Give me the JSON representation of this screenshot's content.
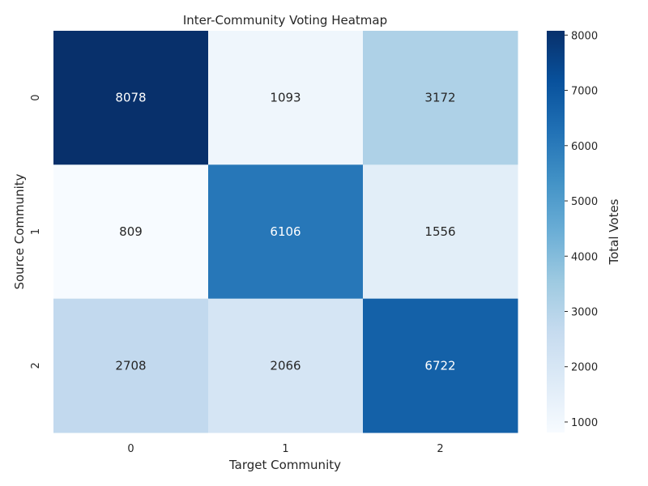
{
  "chart_data": {
    "type": "heatmap",
    "title": "Inter-Community Voting Heatmap",
    "xlabel": "Target Community",
    "ylabel": "Source Community",
    "x_categories": [
      "0",
      "1",
      "2"
    ],
    "y_categories": [
      "0",
      "1",
      "2"
    ],
    "values": [
      [
        8078,
        1093,
        3172
      ],
      [
        809,
        6106,
        1556
      ],
      [
        2708,
        2066,
        6722
      ]
    ],
    "colorbar": {
      "label": "Total Votes",
      "ticks": [
        1000,
        2000,
        3000,
        4000,
        5000,
        6000,
        7000,
        8000
      ],
      "vmin": 809,
      "vmax": 8078
    },
    "colormap": "Blues",
    "colors": {
      "low": "#f7fbff",
      "high": "#08306b",
      "text_on_dark": "#ffffff",
      "text_on_light": "#262626"
    }
  }
}
